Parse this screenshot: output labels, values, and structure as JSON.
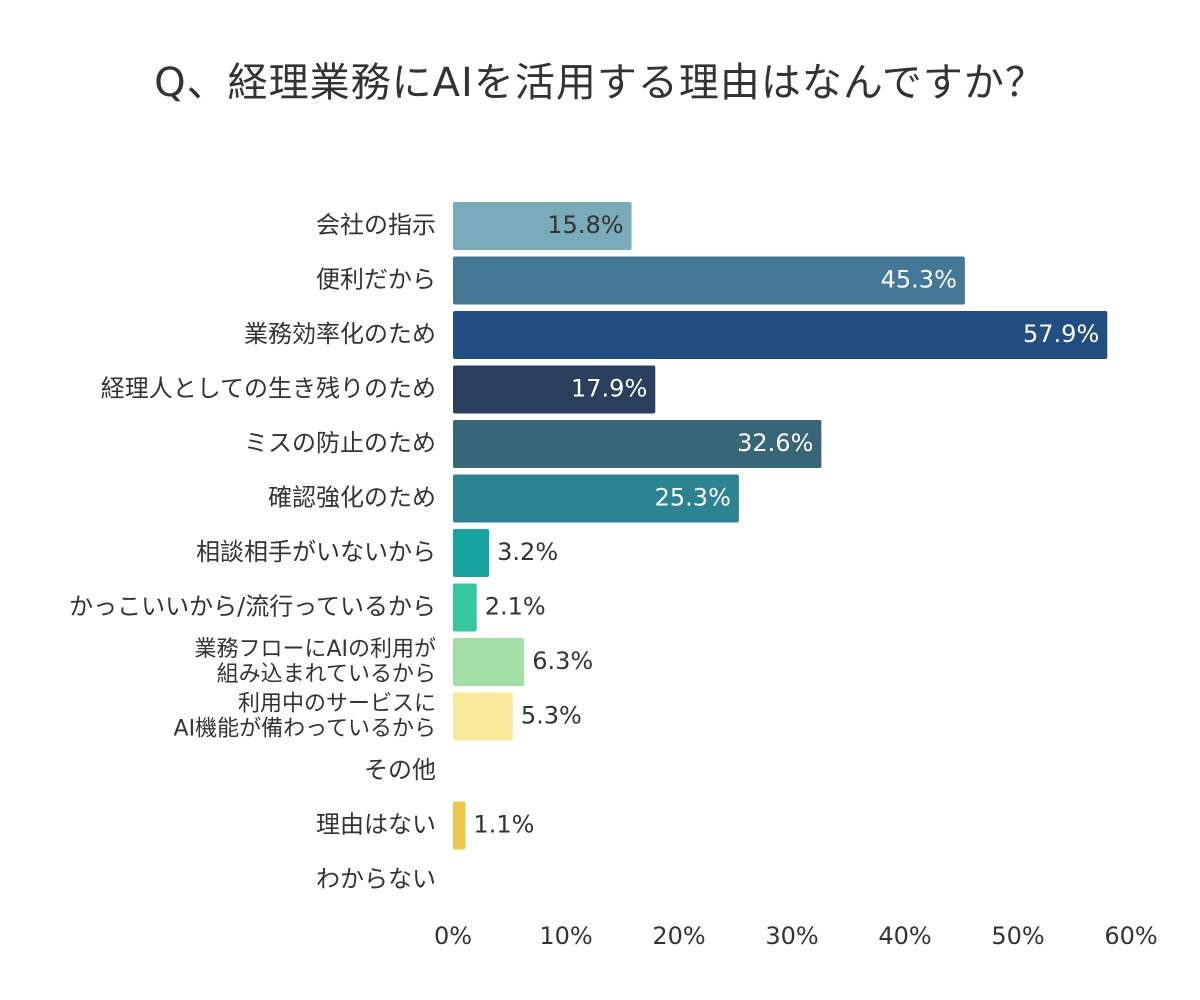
{
  "chart_data": {
    "type": "bar",
    "orientation": "horizontal",
    "title": "Q、経理業務にAIを活用する理由はなんですか？",
    "categories": [
      "会社の指示",
      "便利だから",
      "業務効率化のため",
      "経理人としての生き残りのため",
      "ミスの防止のため",
      "確認強化のため",
      "相談相手がいないから",
      "かっこいいから/流行っているから",
      "業務フローにAIの利用が\n組み込まれているから",
      "利用中のサービスに\nAI機能が備わっているから",
      "その他",
      "理由はない",
      "わからない"
    ],
    "values": [
      15.8,
      45.3,
      57.9,
      17.9,
      32.6,
      25.3,
      3.2,
      2.1,
      6.3,
      5.3,
      null,
      1.1,
      null
    ],
    "data_labels": [
      "15.8%",
      "45.3%",
      "57.9%",
      "17.9%",
      "32.6%",
      "25.3%",
      "3.2%",
      "2.1%",
      "6.3%",
      "5.3%",
      "",
      "1.1%",
      ""
    ],
    "colors": [
      "#7aabba",
      "#437896",
      "#234e82",
      "#2a3e5e",
      "#396676",
      "#2c8493",
      "#18a3a0",
      "#36c6a0",
      "#a2dea6",
      "#f8e89a",
      "#f0d060",
      "#ecc64a",
      "#e8c040"
    ],
    "label_colors": [
      "#333333",
      "#ffffff",
      "#ffffff",
      "#ffffff",
      "#ffffff",
      "#ffffff",
      "#333333",
      "#333333",
      "#333333",
      "#333333",
      "#333333",
      "#333333",
      "#333333"
    ],
    "x_ticks": [
      "0%",
      "10%",
      "20%",
      "30%",
      "40%",
      "50%",
      "60%"
    ],
    "xlim": [
      0,
      60
    ],
    "grid": false,
    "legend": "none"
  }
}
